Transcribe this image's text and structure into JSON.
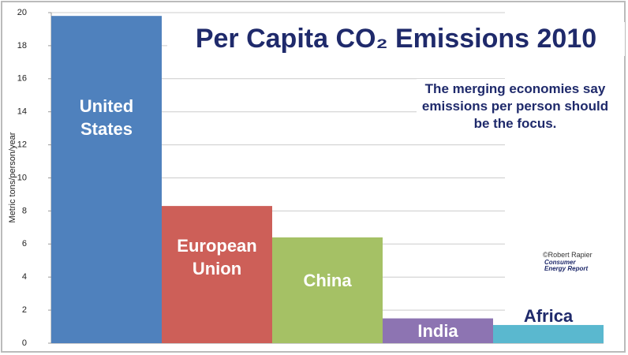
{
  "chart_data": {
    "type": "bar",
    "title": "Per Capita CO₂ Emissions 2010",
    "annotation": "The merging economies say emissions per person should be the focus.",
    "credit": "©Robert Rapier",
    "logo": "Consumer Energy Report",
    "y_label": "Metric tons/person/year",
    "categories": [
      "United States",
      "European Union",
      "China",
      "India",
      "Africa"
    ],
    "values": [
      19.8,
      8.3,
      6.4,
      1.5,
      1.1
    ],
    "colors": [
      "#4f81bd",
      "#cd5f58",
      "#a5c165",
      "#8d74b2",
      "#5ab8cf"
    ],
    "ylim": [
      0,
      20
    ],
    "yticks": [
      0,
      2,
      4,
      6,
      8,
      10,
      12,
      14,
      16,
      18,
      20
    ],
    "grid": true
  }
}
